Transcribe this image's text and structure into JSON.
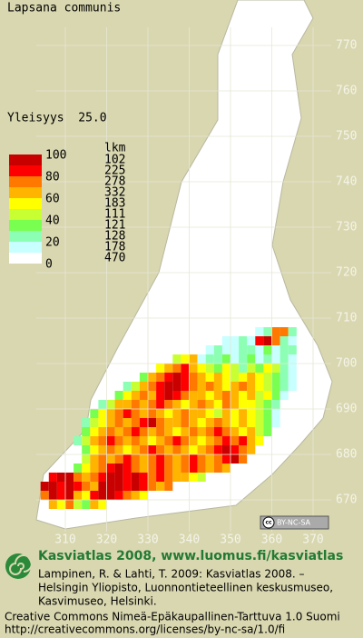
{
  "title": "Lapsana communis",
  "frequency": "Yleisyys  25.0",
  "legend": {
    "scale": [
      100,
      80,
      60,
      40,
      20,
      0
    ],
    "count_header": "lkm",
    "classes": [
      {
        "color": "#c80000",
        "count": 102
      },
      {
        "color": "#ff0000",
        "count": 225
      },
      {
        "color": "#ff7800",
        "count": 278
      },
      {
        "color": "#ffb400",
        "count": 332
      },
      {
        "color": "#ffff00",
        "count": 183
      },
      {
        "color": "#c8ff32",
        "count": 111
      },
      {
        "color": "#78ff50",
        "count": 121
      },
      {
        "color": "#8cffb4",
        "count": 128
      },
      {
        "color": "#c8ffff",
        "count": 178
      },
      {
        "color": "#ffffff",
        "count": 470
      }
    ]
  },
  "grid": {
    "xticks": [
      310,
      320,
      330,
      340,
      350,
      360,
      370
    ],
    "yticks": [
      770,
      760,
      750,
      740,
      730,
      720,
      710,
      700,
      690,
      680,
      670
    ]
  },
  "cells": [
    {
      "y": 706,
      "x0": 356,
      "classes": [
        8,
        7,
        2,
        2,
        7
      ]
    },
    {
      "y": 704,
      "x0": 348,
      "classes": [
        8,
        8,
        7,
        8,
        1,
        0,
        2,
        7,
        8
      ]
    },
    {
      "y": 702,
      "x0": 344,
      "classes": [
        8,
        7,
        8,
        8,
        7,
        7,
        8,
        6,
        8,
        7,
        7
      ]
    },
    {
      "y": 700,
      "x0": 336,
      "classes": [
        5,
        4,
        3,
        8,
        7,
        7,
        6,
        8,
        7,
        6,
        8,
        7,
        8,
        7,
        8
      ]
    },
    {
      "y": 698,
      "x0": 332,
      "classes": [
        4,
        3,
        2,
        1,
        3,
        4,
        5,
        6,
        4,
        5,
        7,
        5,
        6,
        4,
        5,
        7,
        8
      ]
    },
    {
      "y": 696,
      "x0": 328,
      "classes": [
        6,
        3,
        2,
        1,
        0,
        1,
        2,
        3,
        4,
        3,
        4,
        5,
        4,
        3,
        4,
        5,
        6,
        7,
        8
      ]
    },
    {
      "y": 694,
      "x0": 324,
      "classes": [
        7,
        5,
        3,
        2,
        1,
        0,
        0,
        1,
        2,
        3,
        2,
        3,
        4,
        3,
        2,
        3,
        4,
        5,
        6,
        7,
        8
      ]
    },
    {
      "y": 692,
      "x0": 322,
      "classes": [
        6,
        4,
        3,
        2,
        3,
        1,
        0,
        1,
        2,
        3,
        3,
        4,
        3,
        2,
        3,
        4,
        3,
        5,
        4,
        6,
        8
      ]
    },
    {
      "y": 690,
      "x0": 318,
      "classes": [
        7,
        5,
        3,
        3,
        2,
        3,
        2,
        1,
        2,
        3,
        4,
        3,
        2,
        3,
        4,
        2,
        3,
        4,
        4,
        5,
        6,
        7
      ]
    },
    {
      "y": 688,
      "x0": 316,
      "classes": [
        6,
        4,
        3,
        2,
        1,
        2,
        3,
        2,
        3,
        4,
        3,
        2,
        3,
        3,
        4,
        5,
        3,
        4,
        3,
        4,
        5,
        6,
        8
      ]
    },
    {
      "y": 686,
      "x0": 314,
      "classes": [
        7,
        5,
        4,
        3,
        2,
        3,
        2,
        1,
        0,
        2,
        3,
        3,
        2,
        3,
        4,
        3,
        2,
        3,
        4,
        3,
        4,
        5,
        6,
        8
      ]
    },
    {
      "y": 684,
      "x0": 314,
      "classes": [
        6,
        4,
        3,
        2,
        3,
        2,
        1,
        2,
        3,
        2,
        3,
        4,
        3,
        2,
        3,
        2,
        1,
        2,
        3,
        4,
        3,
        5,
        6
      ]
    },
    {
      "y": 682,
      "x0": 312,
      "classes": [
        7,
        5,
        3,
        2,
        1,
        2,
        3,
        2,
        3,
        4,
        3,
        2,
        1,
        2,
        3,
        4,
        3,
        2,
        1,
        2,
        1,
        3,
        4
      ]
    },
    {
      "y": 680,
      "x0": 314,
      "classes": [
        6,
        4,
        3,
        2,
        3,
        4,
        3,
        2,
        1,
        2,
        3,
        2,
        3,
        4,
        3,
        2,
        1,
        0,
        1,
        2,
        3
      ]
    },
    {
      "y": 678,
      "x0": 314,
      "classes": [
        5,
        3,
        2,
        3,
        2,
        1,
        2,
        3,
        2,
        1,
        2,
        3,
        2,
        1,
        2,
        3,
        2,
        1,
        0,
        2
      ]
    },
    {
      "y": 676,
      "x0": 312,
      "classes": [
        6,
        4,
        3,
        2,
        1,
        0,
        1,
        2,
        3,
        2,
        1,
        2,
        3,
        2,
        1,
        2,
        3,
        2,
        3
      ]
    },
    {
      "y": 674,
      "x0": 306,
      "classes": [
        1,
        0,
        0,
        2,
        3,
        2,
        1,
        0,
        0,
        1,
        0,
        1,
        2,
        1,
        2,
        3,
        3,
        4,
        5
      ]
    },
    {
      "y": 672,
      "x0": 304,
      "classes": [
        0,
        0,
        1,
        0,
        1,
        2,
        3,
        0,
        0,
        0,
        1,
        0,
        1,
        2,
        3,
        2
      ]
    },
    {
      "y": 670,
      "x0": 304,
      "classes": [
        2,
        0,
        1,
        0,
        3,
        4,
        1,
        0,
        0,
        1,
        2,
        3,
        4
      ]
    },
    {
      "y": 668,
      "x0": 306,
      "classes": [
        3,
        4,
        2,
        5,
        6,
        3,
        4
      ]
    }
  ],
  "license_badge": {
    "symbol": "cc",
    "text": "BY-NC-SA"
  },
  "footer": {
    "heading": "Kasviatlas 2008, www.luomus.fi/kasviatlas",
    "citation": [
      "Lampinen, R. & Lahti, T. 2009: Kasviatlas 2008. –",
      "Helsingin Yliopisto, Luonnontieteellinen keskusmuseo,",
      "Kasvimuseo, Helsinki."
    ],
    "license": [
      "Creative Commons Nimeä-Epäkaupallinen-Tarttuva 1.0 Suomi",
      "http://creativecommons.org/licenses/by-nc-sa/1.0/fi"
    ]
  }
}
